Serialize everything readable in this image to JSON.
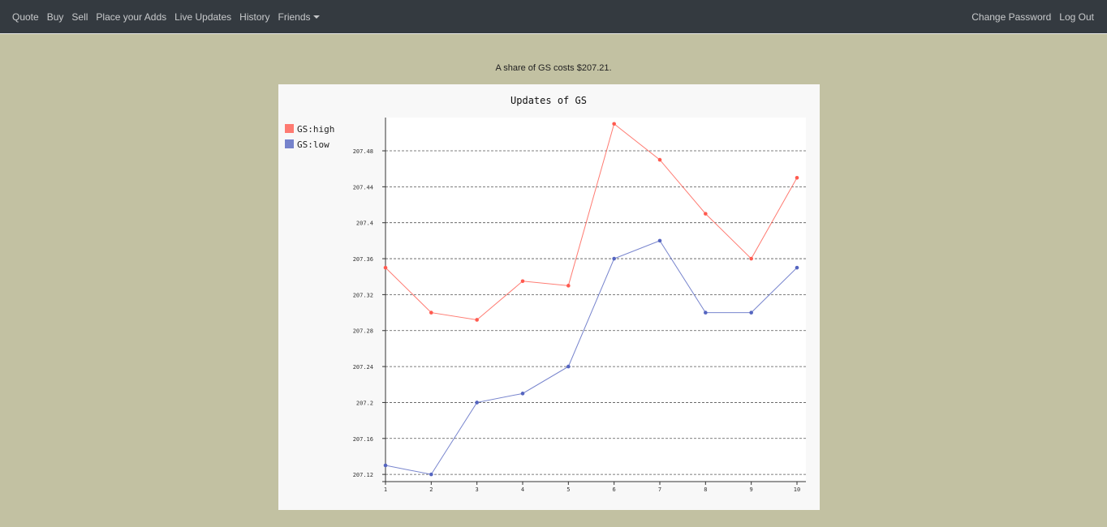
{
  "nav": {
    "left": [
      {
        "label": "Quote"
      },
      {
        "label": "Buy"
      },
      {
        "label": "Sell"
      },
      {
        "label": "Place your Adds"
      },
      {
        "label": "Live Updates"
      },
      {
        "label": "History"
      },
      {
        "label": "Friends"
      }
    ],
    "right": [
      {
        "label": "Change Password"
      },
      {
        "label": "Log Out"
      }
    ]
  },
  "main": {
    "quote_text": "A share of GS costs $207.21."
  },
  "colors": {
    "high": "#ff5a4f",
    "low": "#5565c0",
    "navbar": "#343a40",
    "background": "#c2c1a2"
  },
  "chart_data": {
    "type": "line",
    "title": "Updates of GS",
    "x": [
      1,
      2,
      3,
      4,
      5,
      6,
      7,
      8,
      9,
      10
    ],
    "series": [
      {
        "name": "GS:high",
        "values": [
          207.35,
          207.3,
          207.292,
          207.335,
          207.33,
          207.51,
          207.47,
          207.41,
          207.36,
          207.45
        ]
      },
      {
        "name": "GS:low",
        "values": [
          207.13,
          207.12,
          207.2,
          207.21,
          207.24,
          207.36,
          207.38,
          207.3,
          207.3,
          207.35
        ]
      }
    ],
    "yticks": [
      "207.12",
      "207.16",
      "207.2",
      "207.24",
      "207.28",
      "207.32",
      "207.36",
      "207.4",
      "207.44",
      "207.48"
    ],
    "xticks": [
      "1",
      "2",
      "3",
      "4",
      "5",
      "6",
      "7",
      "8",
      "9",
      "10"
    ],
    "ylim": [
      207.112,
      207.517
    ],
    "grid": true,
    "legend": "top-left"
  }
}
